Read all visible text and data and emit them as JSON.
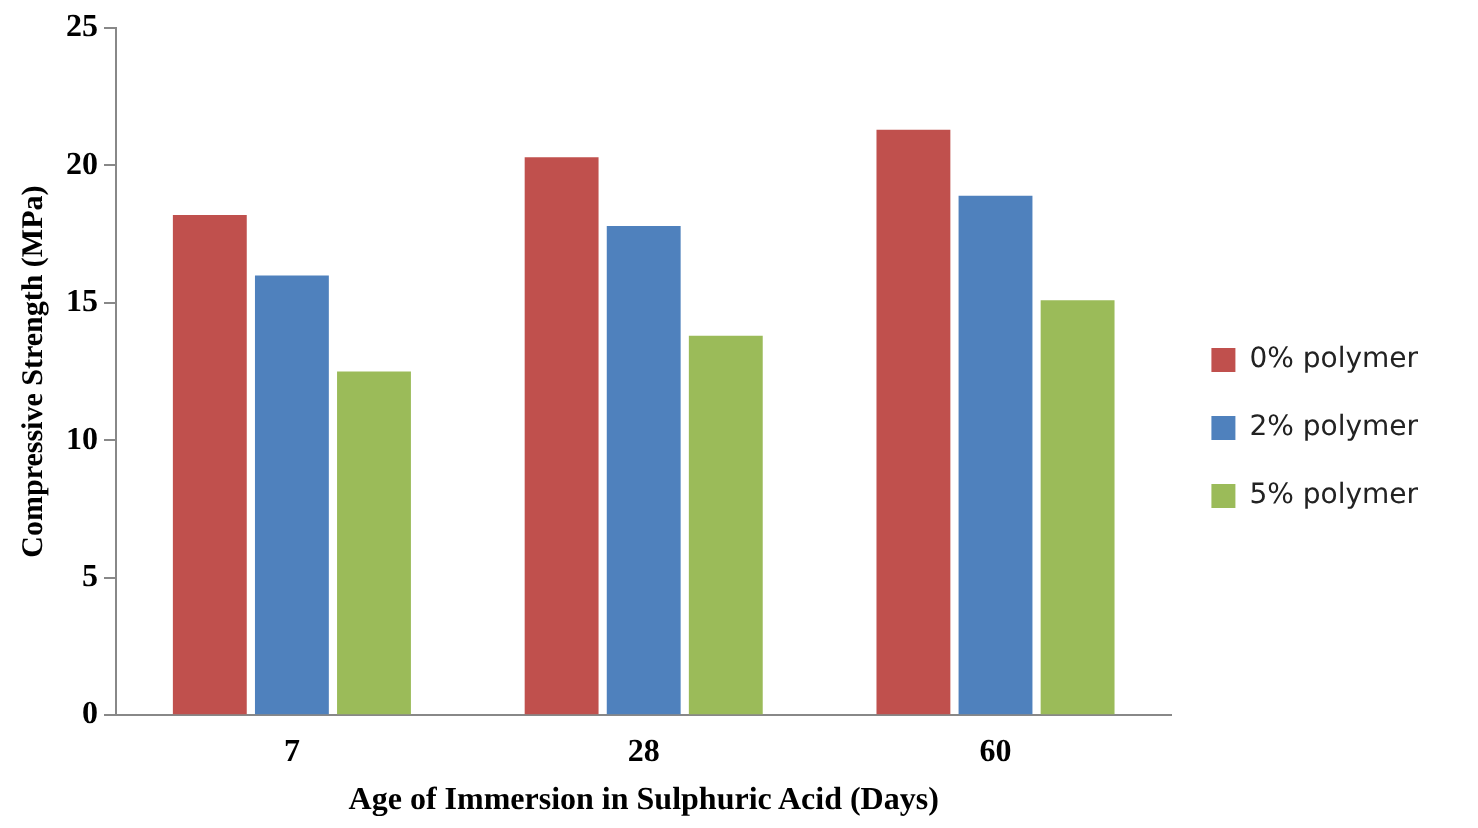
{
  "chart_data": {
    "type": "bar",
    "xlabel": "Age of Immersion in Sulphuric Acid (Days)",
    "ylabel": "Compressive Strength (MPa)",
    "categories": [
      "7",
      "28",
      "60"
    ],
    "series": [
      {
        "name": "0% polymer",
        "color": "#c0504d",
        "values": [
          18.2,
          20.3,
          21.3
        ]
      },
      {
        "name": "2% polymer",
        "color": "#4f81bd",
        "values": [
          16.0,
          17.8,
          18.9
        ]
      },
      {
        "name": "5% polymer",
        "color": "#9bbb59",
        "values": [
          12.5,
          13.8,
          15.1
        ]
      }
    ],
    "ylim": [
      0,
      25
    ],
    "yticks": [
      0,
      5,
      10,
      15,
      20,
      25
    ],
    "grid": false,
    "legend": "right"
  }
}
